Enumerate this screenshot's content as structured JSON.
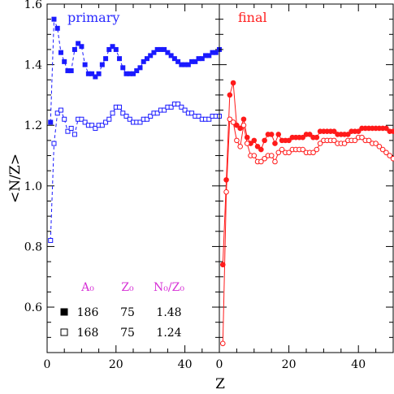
{
  "chart_data": {
    "type": "scatter",
    "xlabel": "Z",
    "ylabel": "<N/Z>",
    "xlim": [
      0,
      50
    ],
    "ylim": [
      0.45,
      1.6
    ],
    "xticks": [
      "0",
      "20",
      "40"
    ],
    "yticks": [
      "0.6",
      "0.8",
      "1.0",
      "1.2",
      "1.4",
      "1.6"
    ],
    "panels": [
      {
        "label": "primary",
        "label_color": "#2b2bff",
        "series": [
          {
            "marker": "filled-square",
            "line": "dashed",
            "color": "#1a1aff",
            "x": [
              1,
              2,
              3,
              4,
              5,
              6,
              7,
              8,
              9,
              10,
              11,
              12,
              13,
              14,
              15,
              16,
              17,
              18,
              19,
              20,
              21,
              22,
              23,
              24,
              25,
              26,
              27,
              28,
              29,
              30,
              31,
              32,
              33,
              34,
              35,
              36,
              37,
              38,
              39,
              40,
              41,
              42,
              43,
              44,
              45,
              46,
              47,
              48,
              49,
              50
            ],
            "y": [
              1.21,
              1.55,
              1.52,
              1.44,
              1.41,
              1.38,
              1.38,
              1.45,
              1.47,
              1.46,
              1.4,
              1.37,
              1.37,
              1.36,
              1.37,
              1.4,
              1.42,
              1.45,
              1.46,
              1.45,
              1.42,
              1.39,
              1.37,
              1.37,
              1.37,
              1.38,
              1.39,
              1.41,
              1.42,
              1.43,
              1.44,
              1.45,
              1.45,
              1.45,
              1.44,
              1.43,
              1.42,
              1.41,
              1.4,
              1.4,
              1.4,
              1.41,
              1.41,
              1.42,
              1.42,
              1.43,
              1.43,
              1.44,
              1.44,
              1.45
            ]
          },
          {
            "marker": "open-square",
            "line": "dashed",
            "color": "#1a1aff",
            "x": [
              1,
              2,
              3,
              4,
              5,
              6,
              7,
              8,
              9,
              10,
              11,
              12,
              13,
              14,
              15,
              16,
              17,
              18,
              19,
              20,
              21,
              22,
              23,
              24,
              25,
              26,
              27,
              28,
              29,
              30,
              31,
              32,
              33,
              34,
              35,
              36,
              37,
              38,
              39,
              40,
              41,
              42,
              43,
              44,
              45,
              46,
              47,
              48,
              49,
              50
            ],
            "y": [
              0.82,
              1.14,
              1.24,
              1.25,
              1.22,
              1.18,
              1.19,
              1.17,
              1.22,
              1.22,
              1.21,
              1.2,
              1.2,
              1.19,
              1.2,
              1.2,
              1.21,
              1.22,
              1.24,
              1.26,
              1.26,
              1.24,
              1.23,
              1.22,
              1.21,
              1.21,
              1.21,
              1.22,
              1.22,
              1.23,
              1.24,
              1.24,
              1.25,
              1.25,
              1.26,
              1.26,
              1.27,
              1.27,
              1.26,
              1.25,
              1.24,
              1.24,
              1.23,
              1.23,
              1.22,
              1.22,
              1.22,
              1.23,
              1.23,
              1.23
            ]
          }
        ]
      },
      {
        "label": "final",
        "label_color": "#ff2020",
        "series": [
          {
            "marker": "filled-circle",
            "line": "solid",
            "color": "#ff1a1a",
            "x": [
              1,
              2,
              3,
              4,
              5,
              6,
              7,
              8,
              9,
              10,
              11,
              12,
              13,
              14,
              15,
              16,
              17,
              18,
              19,
              20,
              21,
              22,
              23,
              24,
              25,
              26,
              27,
              28,
              29,
              30,
              31,
              32,
              33,
              34,
              35,
              36,
              37,
              38,
              39,
              40,
              41,
              42,
              43,
              44,
              45,
              46,
              47,
              48,
              49,
              50
            ],
            "y": [
              0.74,
              1.02,
              1.3,
              1.34,
              1.2,
              1.19,
              1.22,
              1.16,
              1.14,
              1.15,
              1.13,
              1.12,
              1.15,
              1.17,
              1.17,
              1.14,
              1.17,
              1.15,
              1.15,
              1.15,
              1.16,
              1.16,
              1.16,
              1.16,
              1.17,
              1.17,
              1.16,
              1.16,
              1.18,
              1.18,
              1.18,
              1.18,
              1.18,
              1.17,
              1.17,
              1.17,
              1.17,
              1.18,
              1.18,
              1.18,
              1.19,
              1.19,
              1.19,
              1.19,
              1.19,
              1.19,
              1.19,
              1.19,
              1.18,
              1.18
            ]
          },
          {
            "marker": "open-circle",
            "line": "solid",
            "color": "#ff1a1a",
            "x": [
              1,
              2,
              3,
              4,
              5,
              6,
              7,
              8,
              9,
              10,
              11,
              12,
              13,
              14,
              15,
              16,
              17,
              18,
              19,
              20,
              21,
              22,
              23,
              24,
              25,
              26,
              27,
              28,
              29,
              30,
              31,
              32,
              33,
              34,
              35,
              36,
              37,
              38,
              39,
              40,
              41,
              42,
              43,
              44,
              45,
              46,
              47,
              48,
              49,
              50
            ],
            "y": [
              0.48,
              0.98,
              1.22,
              1.21,
              1.15,
              1.13,
              1.2,
              1.14,
              1.1,
              1.1,
              1.08,
              1.08,
              1.09,
              1.1,
              1.1,
              1.08,
              1.11,
              1.12,
              1.11,
              1.11,
              1.12,
              1.12,
              1.12,
              1.12,
              1.11,
              1.11,
              1.11,
              1.12,
              1.14,
              1.15,
              1.15,
              1.15,
              1.15,
              1.14,
              1.14,
              1.14,
              1.15,
              1.15,
              1.15,
              1.16,
              1.16,
              1.15,
              1.15,
              1.14,
              1.14,
              1.13,
              1.12,
              1.11,
              1.1,
              1.09
            ]
          }
        ]
      }
    ],
    "legend": {
      "headers": [
        "A₀",
        "Z₀",
        "N₀/Z₀"
      ],
      "rows": [
        {
          "marker": "filled-square",
          "A0": "186",
          "Z0": "75",
          "NZ": "1.48"
        },
        {
          "marker": "open-square",
          "A0": "168",
          "Z0": "75",
          "NZ": "1.24"
        }
      ]
    }
  }
}
